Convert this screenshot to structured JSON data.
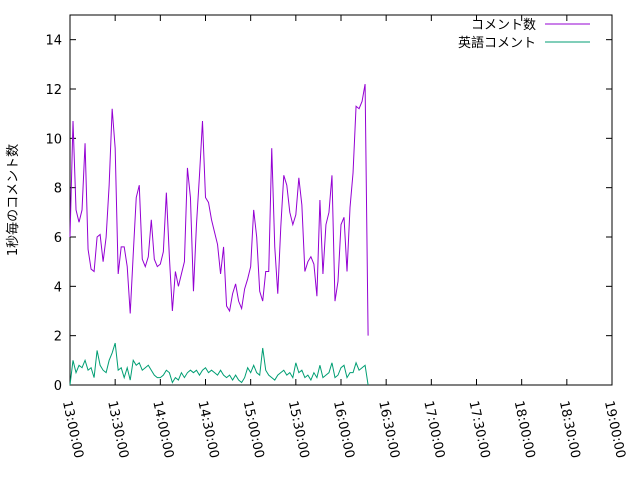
{
  "chart_data": {
    "type": "line",
    "ylabel": "1秒毎のコメント数",
    "xlim": [
      "13:00:00",
      "19:00:00"
    ],
    "ylim": [
      0,
      15
    ],
    "x_ticks": [
      "13:00:00",
      "13:30:00",
      "14:00:00",
      "14:30:00",
      "15:00:00",
      "15:30:00",
      "16:00:00",
      "16:30:00",
      "17:00:00",
      "17:30:00",
      "18:00:00",
      "18:30:00",
      "19:00:00"
    ],
    "y_ticks": [
      "0",
      "2",
      "4",
      "6",
      "8",
      "10",
      "12",
      "14"
    ],
    "grid": false,
    "legend_position": "top-right",
    "series": [
      {
        "name": "コメント数",
        "color": "#9400d3",
        "points": [
          [
            "13:00:00",
            6.0
          ],
          [
            "13:02:00",
            10.7
          ],
          [
            "13:04:00",
            7.1
          ],
          [
            "13:06:00",
            6.6
          ],
          [
            "13:08:00",
            7.1
          ],
          [
            "13:10:00",
            9.8
          ],
          [
            "13:12:00",
            5.5
          ],
          [
            "13:14:00",
            4.7
          ],
          [
            "13:16:00",
            4.6
          ],
          [
            "13:18:00",
            6.0
          ],
          [
            "13:20:00",
            6.1
          ],
          [
            "13:22:00",
            5.0
          ],
          [
            "13:24:00",
            6.0
          ],
          [
            "13:26:00",
            8.1
          ],
          [
            "13:28:00",
            11.2
          ],
          [
            "13:30:00",
            9.6
          ],
          [
            "13:32:00",
            4.5
          ],
          [
            "13:34:00",
            5.6
          ],
          [
            "13:36:00",
            5.6
          ],
          [
            "13:38:00",
            4.8
          ],
          [
            "13:40:00",
            2.9
          ],
          [
            "13:42:00",
            5.3
          ],
          [
            "13:44:00",
            7.6
          ],
          [
            "13:46:00",
            8.1
          ],
          [
            "13:48:00",
            5.1
          ],
          [
            "13:50:00",
            4.8
          ],
          [
            "13:52:00",
            5.2
          ],
          [
            "13:54:00",
            6.7
          ],
          [
            "13:56:00",
            5.1
          ],
          [
            "13:58:00",
            4.8
          ],
          [
            "14:00:00",
            4.9
          ],
          [
            "14:02:00",
            5.4
          ],
          [
            "14:04:00",
            7.8
          ],
          [
            "14:06:00",
            5.2
          ],
          [
            "14:08:00",
            3.0
          ],
          [
            "14:10:00",
            4.6
          ],
          [
            "14:12:00",
            4.0
          ],
          [
            "14:14:00",
            4.5
          ],
          [
            "14:16:00",
            5.0
          ],
          [
            "14:18:00",
            8.8
          ],
          [
            "14:20:00",
            7.6
          ],
          [
            "14:22:00",
            3.8
          ],
          [
            "14:24:00",
            6.5
          ],
          [
            "14:26:00",
            8.5
          ],
          [
            "14:28:00",
            10.7
          ],
          [
            "14:30:00",
            7.6
          ],
          [
            "14:32:00",
            7.4
          ],
          [
            "14:34:00",
            6.7
          ],
          [
            "14:36:00",
            6.2
          ],
          [
            "14:38:00",
            5.7
          ],
          [
            "14:40:00",
            4.5
          ],
          [
            "14:42:00",
            5.6
          ],
          [
            "14:44:00",
            3.2
          ],
          [
            "14:46:00",
            3.0
          ],
          [
            "14:48:00",
            3.7
          ],
          [
            "14:50:00",
            4.1
          ],
          [
            "14:52:00",
            3.4
          ],
          [
            "14:54:00",
            3.1
          ],
          [
            "14:56:00",
            3.9
          ],
          [
            "14:58:00",
            4.3
          ],
          [
            "15:00:00",
            4.8
          ],
          [
            "15:02:00",
            7.1
          ],
          [
            "15:04:00",
            6.0
          ],
          [
            "15:06:00",
            3.8
          ],
          [
            "15:08:00",
            3.4
          ],
          [
            "15:10:00",
            4.6
          ],
          [
            "15:12:00",
            4.6
          ],
          [
            "15:14:00",
            9.6
          ],
          [
            "15:16:00",
            5.6
          ],
          [
            "15:18:00",
            3.7
          ],
          [
            "15:20:00",
            6.4
          ],
          [
            "15:22:00",
            8.5
          ],
          [
            "15:24:00",
            8.1
          ],
          [
            "15:26:00",
            7.0
          ],
          [
            "15:28:00",
            6.5
          ],
          [
            "15:30:00",
            6.9
          ],
          [
            "15:32:00",
            8.4
          ],
          [
            "15:34:00",
            7.3
          ],
          [
            "15:36:00",
            4.6
          ],
          [
            "15:38:00",
            5.0
          ],
          [
            "15:40:00",
            5.2
          ],
          [
            "15:42:00",
            4.9
          ],
          [
            "15:44:00",
            3.6
          ],
          [
            "15:46:00",
            7.5
          ],
          [
            "15:48:00",
            4.5
          ],
          [
            "15:50:00",
            6.5
          ],
          [
            "15:52:00",
            7.0
          ],
          [
            "15:54:00",
            8.5
          ],
          [
            "15:56:00",
            3.4
          ],
          [
            "15:58:00",
            4.2
          ],
          [
            "16:00:00",
            6.5
          ],
          [
            "16:02:00",
            6.8
          ],
          [
            "16:04:00",
            4.6
          ],
          [
            "16:06:00",
            7.2
          ],
          [
            "16:08:00",
            8.6
          ],
          [
            "16:10:00",
            11.3
          ],
          [
            "16:12:00",
            11.2
          ],
          [
            "16:14:00",
            11.5
          ],
          [
            "16:16:00",
            12.2
          ],
          [
            "16:18:00",
            2.0
          ]
        ]
      },
      {
        "name": "英語コメント",
        "color": "#009e73",
        "points": [
          [
            "13:00:00",
            0.0
          ],
          [
            "13:02:00",
            1.0
          ],
          [
            "13:04:00",
            0.5
          ],
          [
            "13:06:00",
            0.8
          ],
          [
            "13:08:00",
            0.7
          ],
          [
            "13:10:00",
            1.0
          ],
          [
            "13:12:00",
            0.6
          ],
          [
            "13:14:00",
            0.7
          ],
          [
            "13:16:00",
            0.3
          ],
          [
            "13:18:00",
            1.4
          ],
          [
            "13:20:00",
            0.8
          ],
          [
            "13:22:00",
            0.6
          ],
          [
            "13:24:00",
            0.5
          ],
          [
            "13:26:00",
            1.0
          ],
          [
            "13:28:00",
            1.3
          ],
          [
            "13:30:00",
            1.7
          ],
          [
            "13:32:00",
            0.6
          ],
          [
            "13:34:00",
            0.7
          ],
          [
            "13:36:00",
            0.3
          ],
          [
            "13:38:00",
            0.7
          ],
          [
            "13:40:00",
            0.2
          ],
          [
            "13:42:00",
            1.0
          ],
          [
            "13:44:00",
            0.8
          ],
          [
            "13:46:00",
            0.9
          ],
          [
            "13:48:00",
            0.6
          ],
          [
            "13:50:00",
            0.7
          ],
          [
            "13:52:00",
            0.8
          ],
          [
            "13:54:00",
            0.6
          ],
          [
            "13:56:00",
            0.4
          ],
          [
            "13:58:00",
            0.3
          ],
          [
            "14:00:00",
            0.3
          ],
          [
            "14:02:00",
            0.4
          ],
          [
            "14:04:00",
            0.6
          ],
          [
            "14:06:00",
            0.5
          ],
          [
            "14:08:00",
            0.1
          ],
          [
            "14:10:00",
            0.3
          ],
          [
            "14:12:00",
            0.2
          ],
          [
            "14:14:00",
            0.5
          ],
          [
            "14:16:00",
            0.3
          ],
          [
            "14:18:00",
            0.5
          ],
          [
            "14:20:00",
            0.6
          ],
          [
            "14:22:00",
            0.5
          ],
          [
            "14:24:00",
            0.6
          ],
          [
            "14:26:00",
            0.4
          ],
          [
            "14:28:00",
            0.6
          ],
          [
            "14:30:00",
            0.7
          ],
          [
            "14:32:00",
            0.5
          ],
          [
            "14:34:00",
            0.6
          ],
          [
            "14:36:00",
            0.5
          ],
          [
            "14:38:00",
            0.4
          ],
          [
            "14:40:00",
            0.6
          ],
          [
            "14:42:00",
            0.4
          ],
          [
            "14:44:00",
            0.3
          ],
          [
            "14:46:00",
            0.4
          ],
          [
            "14:48:00",
            0.2
          ],
          [
            "14:50:00",
            0.4
          ],
          [
            "14:52:00",
            0.2
          ],
          [
            "14:54:00",
            0.1
          ],
          [
            "14:56:00",
            0.3
          ],
          [
            "14:58:00",
            0.7
          ],
          [
            "15:00:00",
            0.5
          ],
          [
            "15:02:00",
            0.8
          ],
          [
            "15:04:00",
            0.5
          ],
          [
            "15:06:00",
            0.4
          ],
          [
            "15:08:00",
            1.5
          ],
          [
            "15:10:00",
            0.6
          ],
          [
            "15:12:00",
            0.4
          ],
          [
            "15:14:00",
            0.3
          ],
          [
            "15:16:00",
            0.2
          ],
          [
            "15:18:00",
            0.4
          ],
          [
            "15:20:00",
            0.5
          ],
          [
            "15:22:00",
            0.6
          ],
          [
            "15:24:00",
            0.4
          ],
          [
            "15:26:00",
            0.5
          ],
          [
            "15:28:00",
            0.3
          ],
          [
            "15:30:00",
            0.9
          ],
          [
            "15:32:00",
            0.5
          ],
          [
            "15:34:00",
            0.6
          ],
          [
            "15:36:00",
            0.3
          ],
          [
            "15:38:00",
            0.4
          ],
          [
            "15:40:00",
            0.2
          ],
          [
            "15:42:00",
            0.5
          ],
          [
            "15:44:00",
            0.3
          ],
          [
            "15:46:00",
            0.8
          ],
          [
            "15:48:00",
            0.3
          ],
          [
            "15:50:00",
            0.4
          ],
          [
            "15:52:00",
            0.5
          ],
          [
            "15:54:00",
            0.9
          ],
          [
            "15:56:00",
            0.3
          ],
          [
            "15:58:00",
            0.4
          ],
          [
            "16:00:00",
            0.7
          ],
          [
            "16:02:00",
            0.8
          ],
          [
            "16:04:00",
            0.3
          ],
          [
            "16:06:00",
            0.5
          ],
          [
            "16:08:00",
            0.5
          ],
          [
            "16:10:00",
            0.9
          ],
          [
            "16:12:00",
            0.6
          ],
          [
            "16:14:00",
            0.7
          ],
          [
            "16:16:00",
            0.8
          ],
          [
            "16:18:00",
            0.0
          ]
        ]
      }
    ]
  }
}
